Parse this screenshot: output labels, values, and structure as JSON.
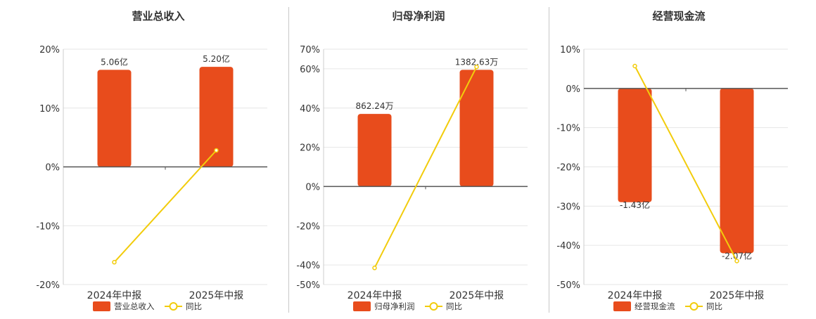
{
  "colors": {
    "bar": "#e84c1c",
    "line": "#f2cc0c",
    "axis": "#555555",
    "grid": "#e6e6e6",
    "text": "#333333"
  },
  "chart_data": [
    {
      "type": "bar",
      "title": "营业总收入",
      "categories": [
        "2024年中报",
        "2025年中报"
      ],
      "series": [
        {
          "name": "营业总收入",
          "kind": "bar",
          "values": [
            16.5,
            17
          ],
          "labels": [
            "5.06亿",
            "5.20亿"
          ]
        },
        {
          "name": "同比",
          "kind": "line",
          "values": [
            -16.2,
            2.8
          ]
        }
      ],
      "y_ticks": [
        20,
        10,
        0,
        -10,
        -20
      ],
      "y_tick_labels": [
        "20%",
        "10%",
        "0%",
        "-10%",
        "-20%"
      ],
      "ylim": [
        -20,
        20
      ],
      "legend": "bottom"
    },
    {
      "type": "bar",
      "title": "归母净利润",
      "categories": [
        "2024年中报",
        "2025年中报"
      ],
      "series": [
        {
          "name": "归母净利润",
          "kind": "bar",
          "values": [
            37,
            59.5
          ],
          "labels": [
            "862.24万",
            "1382.63万"
          ]
        },
        {
          "name": "同比",
          "kind": "line",
          "values": [
            -41.5,
            61
          ]
        }
      ],
      "y_ticks": [
        70,
        60,
        40,
        20,
        0,
        -20,
        -40,
        -50
      ],
      "y_tick_labels": [
        "70%",
        "60%",
        "40%",
        "20%",
        "0%",
        "-20%",
        "-40%",
        "-50%"
      ],
      "ylim": [
        -50,
        70
      ],
      "legend": "bottom"
    },
    {
      "type": "bar",
      "title": "经营现金流",
      "categories": [
        "2024年中报",
        "2025年中报"
      ],
      "series": [
        {
          "name": "经营现金流",
          "kind": "bar",
          "values": [
            -29,
            -42
          ],
          "labels": [
            "-1.43亿",
            "-2.07亿"
          ]
        },
        {
          "name": "同比",
          "kind": "line",
          "values": [
            5.7,
            -44
          ]
        }
      ],
      "y_ticks": [
        10,
        0,
        -10,
        -20,
        -30,
        -40,
        -50
      ],
      "y_tick_labels": [
        "10%",
        "0%",
        "-10%",
        "-20%",
        "-30%",
        "-40%",
        "-50%"
      ],
      "ylim": [
        -50,
        10
      ],
      "legend": "bottom"
    }
  ]
}
